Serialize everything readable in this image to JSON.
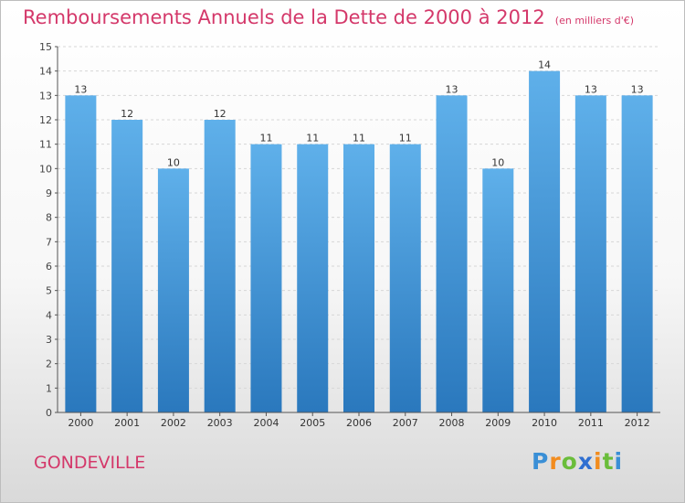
{
  "title": "Remboursements Annuels de la Dette de 2000 à 2012",
  "unit_label": "(en milliers d'€)",
  "place": "GONDEVILLE",
  "brand": {
    "letters": [
      "P",
      "r",
      "o",
      "x",
      "i",
      "t",
      "i"
    ],
    "colors": [
      "#3a8fd6",
      "#f28c1e",
      "#6abd3a",
      "#2f6fd1",
      "#f28c1e",
      "#6abd3a",
      "#3a8fd6"
    ]
  },
  "colors": {
    "title": "#d4386a",
    "bar_top": "#5fb0ea",
    "bar_bottom": "#2a78bd"
  },
  "chart_data": {
    "type": "bar",
    "title": "Remboursements Annuels de la Dette de 2000 à 2012",
    "categories": [
      "2000",
      "2001",
      "2002",
      "2003",
      "2004",
      "2005",
      "2006",
      "2007",
      "2008",
      "2009",
      "2010",
      "2011",
      "2012"
    ],
    "values": [
      13,
      12,
      10,
      12,
      11,
      11,
      11,
      11,
      13,
      10,
      14,
      13,
      13
    ],
    "yticks": [
      0,
      1,
      2,
      3,
      4,
      5,
      6,
      7,
      8,
      9,
      10,
      11,
      12,
      13,
      14,
      15
    ],
    "ylim": [
      0,
      15
    ],
    "xlabel": "",
    "ylabel": "",
    "grid": true
  }
}
